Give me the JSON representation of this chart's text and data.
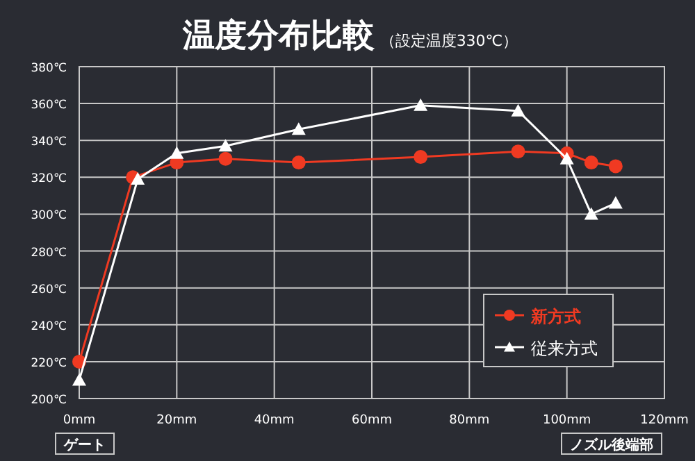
{
  "chart_data": {
    "type": "line",
    "title": "温度分布比較",
    "subtitle": "（設定温度330℃）",
    "xlim": [
      0,
      120
    ],
    "xticks": [
      {
        "value": 0,
        "label": "0mm"
      },
      {
        "value": 20,
        "label": "20mm"
      },
      {
        "value": 40,
        "label": "40mm"
      },
      {
        "value": 60,
        "label": "60mm"
      },
      {
        "value": 80,
        "label": "80mm"
      },
      {
        "value": 100,
        "label": "100mm"
      },
      {
        "value": 120,
        "label": "120mm"
      }
    ],
    "ylim": [
      200,
      380
    ],
    "yticks": [
      {
        "value": 200,
        "label": "200℃"
      },
      {
        "value": 220,
        "label": "220℃"
      },
      {
        "value": 240,
        "label": "240℃"
      },
      {
        "value": 260,
        "label": "260℃"
      },
      {
        "value": 280,
        "label": "280℃"
      },
      {
        "value": 300,
        "label": "300℃"
      },
      {
        "value": 320,
        "label": "320℃"
      },
      {
        "value": 340,
        "label": "340℃"
      },
      {
        "value": 360,
        "label": "360℃"
      },
      {
        "value": 380,
        "label": "380℃"
      }
    ],
    "grid": true,
    "legend": "bottom right",
    "series": [
      {
        "name": "新方式",
        "color": "#f03a22",
        "marker": "circle",
        "x": [
          0,
          11,
          20,
          30,
          45,
          70,
          90,
          100,
          105,
          110
        ],
        "values": [
          220,
          320,
          328,
          330,
          328,
          331,
          334,
          333,
          328,
          326
        ]
      },
      {
        "name": "従来方式",
        "color": "#ffffff",
        "marker": "triangle",
        "x": [
          0,
          12,
          20,
          30,
          45,
          70,
          90,
          100,
          105,
          110
        ],
        "values": [
          210,
          319,
          333,
          337,
          346,
          359,
          356,
          330,
          300,
          306
        ]
      }
    ],
    "annotations": [
      "ゲート",
      "ノズル後端部"
    ]
  }
}
